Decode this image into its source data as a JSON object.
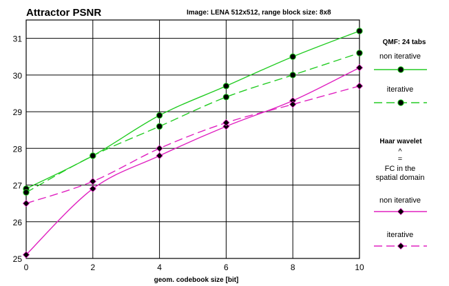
{
  "chart_data": {
    "type": "line",
    "title": "Attractor PSNR",
    "subtitle": "Image: LENA 512x512, range block size: 8x8",
    "xlabel": "geom. codebook size [bit]",
    "ylabel": "",
    "xlim": [
      0,
      10
    ],
    "ylim": [
      25,
      31.5
    ],
    "x_ticks": [
      "0",
      "2",
      "4",
      "6",
      "8",
      "10"
    ],
    "y_ticks": [
      "25",
      "26",
      "27",
      "28",
      "29",
      "30",
      "31"
    ],
    "grid": true,
    "legend_position": "right",
    "x": [
      0,
      2,
      4,
      6,
      8,
      10
    ],
    "series": [
      {
        "name": "non iterative",
        "group": "QMF: 24 tabs",
        "color": "#22cc22",
        "dash": "solid",
        "marker": "circle",
        "values": [
          26.9,
          27.8,
          28.9,
          29.7,
          30.5,
          31.2
        ]
      },
      {
        "name": "iterative",
        "group": "QMF: 24 tabs",
        "color": "#22cc22",
        "dash": "dashed",
        "marker": "circle",
        "values": [
          26.8,
          27.8,
          28.6,
          29.4,
          30.0,
          30.6
        ]
      },
      {
        "name": "non iterative",
        "group": "Haar wavelet",
        "color": "#e020c0",
        "dash": "solid",
        "marker": "diamond",
        "values": [
          25.1,
          26.9,
          27.8,
          28.6,
          29.3,
          30.2
        ]
      },
      {
        "name": "iterative",
        "group": "Haar wavelet",
        "color": "#e020c0",
        "dash": "dashed",
        "marker": "diamond",
        "values": [
          26.5,
          27.1,
          28.0,
          28.7,
          29.2,
          29.7
        ]
      }
    ]
  },
  "legend": {
    "group1_title": "QMF: 24 tabs",
    "group1_item1": "non iterative",
    "group1_item2": "iterative",
    "group2_title": "Haar wavelet",
    "group2_symbol": "^",
    "group2_equals": "=",
    "group2_line1": "FC in the",
    "group2_line2": "spatial domain",
    "group2_item1": "non iterative",
    "group2_item2": "iterative"
  }
}
